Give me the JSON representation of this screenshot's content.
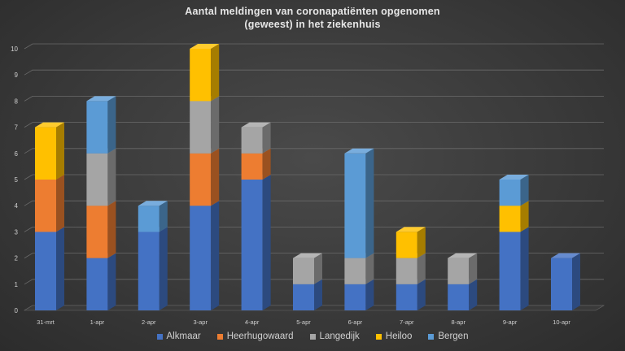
{
  "chart_data": {
    "type": "bar",
    "stacked": true,
    "title_line1": "Aantal meldingen van coronapatiënten opgenomen",
    "title_line2": "(geweest) in het ziekenhuis",
    "xlabel": "",
    "ylabel": "",
    "ylim": [
      0,
      10
    ],
    "yticks": [
      "0",
      "1",
      "2",
      "3",
      "4",
      "5",
      "6",
      "7",
      "8",
      "9",
      "10"
    ],
    "grid": true,
    "legend_position": "bottom",
    "categories": [
      "31-mrt",
      "1-apr",
      "2-apr",
      "3-apr",
      "4-apr",
      "5-apr",
      "6-apr",
      "7-apr",
      "8-apr",
      "9-apr",
      "10-apr"
    ],
    "series": [
      {
        "name": "Alkmaar",
        "color": "#4472C4",
        "values": [
          3,
          2,
          3,
          4,
          5,
          1,
          1,
          1,
          1,
          3,
          2
        ]
      },
      {
        "name": "Heerhugowaard",
        "color": "#ED7D31",
        "values": [
          2,
          2,
          0,
          2,
          1,
          0,
          0,
          0,
          0,
          0,
          0
        ]
      },
      {
        "name": "Langedijk",
        "color": "#A5A5A5",
        "values": [
          0,
          2,
          0,
          2,
          1,
          1,
          1,
          1,
          1,
          0,
          0
        ]
      },
      {
        "name": "Heiloo",
        "color": "#FFC000",
        "values": [
          2,
          0,
          0,
          2,
          0,
          0,
          0,
          1,
          0,
          1,
          0
        ]
      },
      {
        "name": "Bergen",
        "color": "#5B9BD5",
        "values": [
          0,
          2,
          1,
          0,
          0,
          0,
          4,
          0,
          0,
          1,
          0
        ]
      }
    ]
  }
}
